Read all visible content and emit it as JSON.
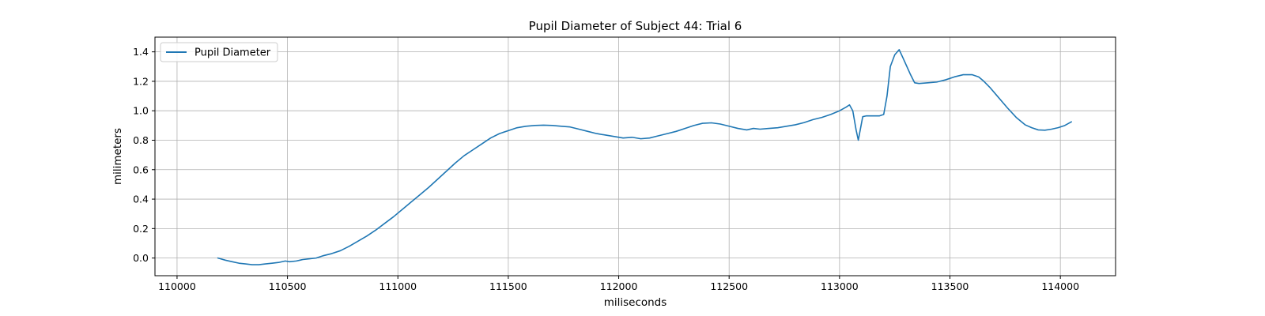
{
  "chart_data": {
    "type": "line",
    "title": "Pupil Diameter of Subject 44: Trial 6",
    "xlabel": "miliseconds",
    "ylabel": "milimeters",
    "xlim": [
      109900,
      114250
    ],
    "ylim": [
      -0.12,
      1.5
    ],
    "xticks": [
      110000,
      110500,
      111000,
      111500,
      112000,
      112500,
      113000,
      113500,
      114000
    ],
    "yticks": [
      0.0,
      0.2,
      0.4,
      0.6,
      0.8,
      1.0,
      1.2,
      1.4
    ],
    "ytick_labels": [
      "0.0",
      "0.2",
      "0.4",
      "0.6",
      "0.8",
      "1.0",
      "1.2",
      "1.4"
    ],
    "grid": true,
    "legend": {
      "position": "top-left"
    },
    "series": [
      {
        "name": "Pupil Diameter",
        "color": "#1f77b4",
        "x": [
          110185,
          110220,
          110250,
          110280,
          110310,
          110340,
          110370,
          110400,
          110430,
          110460,
          110490,
          110510,
          110540,
          110570,
          110600,
          110630,
          110660,
          110700,
          110740,
          110780,
          110820,
          110860,
          110900,
          110940,
          110980,
          111020,
          111060,
          111100,
          111140,
          111180,
          111220,
          111260,
          111300,
          111340,
          111380,
          111420,
          111460,
          111500,
          111540,
          111580,
          111620,
          111660,
          111700,
          111740,
          111780,
          111820,
          111860,
          111900,
          111940,
          111980,
          112020,
          112060,
          112100,
          112140,
          112180,
          112220,
          112260,
          112300,
          112340,
          112380,
          112420,
          112460,
          112500,
          112540,
          112580,
          112610,
          112640,
          112680,
          112720,
          112760,
          112800,
          112840,
          112880,
          112920,
          112960,
          113000,
          113030,
          113045,
          113060,
          113075,
          113085,
          113095,
          113105,
          113120,
          113150,
          113180,
          113200,
          113215,
          113230,
          113250,
          113270,
          113290,
          113320,
          113340,
          113360,
          113400,
          113440,
          113480,
          113520,
          113560,
          113600,
          113630,
          113650,
          113680,
          113720,
          113760,
          113800,
          113840,
          113870,
          113900,
          113930,
          113960,
          113990,
          114020,
          114050
        ],
        "y": [
          0.0,
          -0.015,
          -0.025,
          -0.035,
          -0.04,
          -0.045,
          -0.045,
          -0.04,
          -0.035,
          -0.03,
          -0.02,
          -0.025,
          -0.02,
          -0.01,
          -0.005,
          0.0,
          0.015,
          0.03,
          0.05,
          0.08,
          0.115,
          0.15,
          0.19,
          0.235,
          0.28,
          0.33,
          0.38,
          0.43,
          0.48,
          0.535,
          0.59,
          0.645,
          0.695,
          0.735,
          0.775,
          0.815,
          0.845,
          0.865,
          0.885,
          0.895,
          0.9,
          0.902,
          0.9,
          0.895,
          0.89,
          0.875,
          0.86,
          0.845,
          0.835,
          0.825,
          0.815,
          0.82,
          0.81,
          0.815,
          0.83,
          0.845,
          0.86,
          0.88,
          0.9,
          0.915,
          0.918,
          0.91,
          0.895,
          0.88,
          0.87,
          0.88,
          0.875,
          0.88,
          0.885,
          0.895,
          0.905,
          0.92,
          0.94,
          0.955,
          0.975,
          1.0,
          1.025,
          1.04,
          1.0,
          0.87,
          0.8,
          0.88,
          0.96,
          0.965,
          0.965,
          0.965,
          0.975,
          1.1,
          1.3,
          1.38,
          1.415,
          1.35,
          1.25,
          1.19,
          1.185,
          1.19,
          1.195,
          1.21,
          1.23,
          1.245,
          1.245,
          1.23,
          1.205,
          1.16,
          1.09,
          1.02,
          0.955,
          0.905,
          0.885,
          0.87,
          0.868,
          0.875,
          0.885,
          0.9,
          0.925
        ]
      }
    ]
  }
}
